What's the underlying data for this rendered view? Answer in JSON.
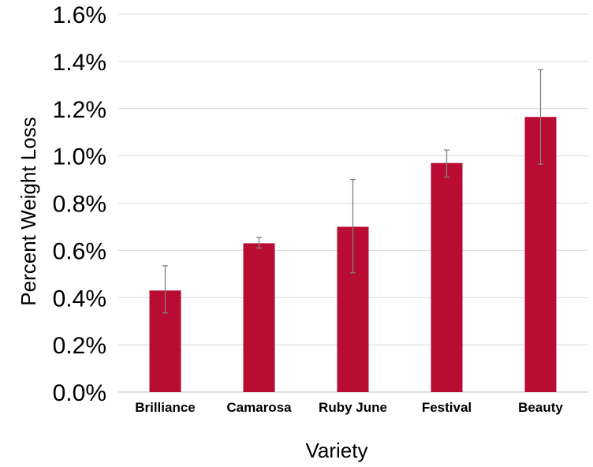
{
  "chart_data": {
    "type": "bar",
    "title": "",
    "xlabel": "Variety",
    "ylabel": "Percent Weight Loss",
    "categories": [
      "Brilliance",
      "Camarosa",
      "Ruby June",
      "Festival",
      "Beauty"
    ],
    "values": [
      0.43,
      0.63,
      0.7,
      0.97,
      1.165
    ],
    "error_low": [
      0.335,
      0.61,
      0.505,
      0.91,
      0.965
    ],
    "error_high": [
      0.535,
      0.655,
      0.9,
      1.025,
      1.365
    ],
    "ylim": [
      0,
      1.6
    ],
    "yticks": [
      0.0,
      0.2,
      0.4,
      0.6,
      0.8,
      1.0,
      1.2,
      1.4,
      1.6
    ],
    "ytick_labels": [
      "0.0%",
      "0.2%",
      "0.4%",
      "0.6%",
      "0.8%",
      "1.0%",
      "1.2%",
      "1.4%",
      "1.6%"
    ],
    "grid": true,
    "legend": "none",
    "bar_color": "#b80c33",
    "error_color": "#808080"
  }
}
